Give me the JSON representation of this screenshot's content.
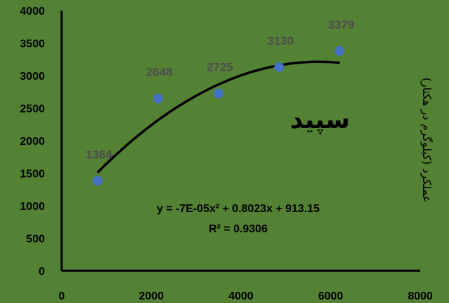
{
  "chart_data": {
    "type": "scatter",
    "title": "",
    "xlabel": "",
    "ylabel": "عملکرد (کیلوگرم در هکتار)",
    "annotation": "سپید",
    "xlim": [
      0,
      8000
    ],
    "ylim": [
      0,
      4000
    ],
    "x_ticks": [
      "0",
      "2000",
      "4000",
      "6000",
      "8000"
    ],
    "y_ticks": [
      "0",
      "500",
      "1000",
      "1500",
      "2000",
      "2500",
      "3000",
      "3500",
      "4000"
    ],
    "grid": false,
    "legend": "none",
    "series": [
      {
        "x": [
          800,
          2150,
          3500,
          4850,
          6200
        ],
        "y": [
          1384,
          2648,
          2725,
          3130,
          3379
        ],
        "labels": [
          "1384",
          "2648",
          "2725",
          "3130",
          "3379"
        ],
        "color": "#4472c4"
      }
    ],
    "trendline": {
      "type": "polynomial",
      "order": 2,
      "equation": "y = -7E-05x² + 0.8023x + 913.15",
      "r_squared": "R² = 0.9306",
      "coefficients": [
        -7e-05,
        0.8023,
        913.15
      ],
      "x_range": [
        800,
        6200
      ],
      "color": "#000000"
    },
    "colors": {
      "background": "#548235",
      "marker": "#4472c4",
      "label": "#4d4d4d"
    }
  }
}
